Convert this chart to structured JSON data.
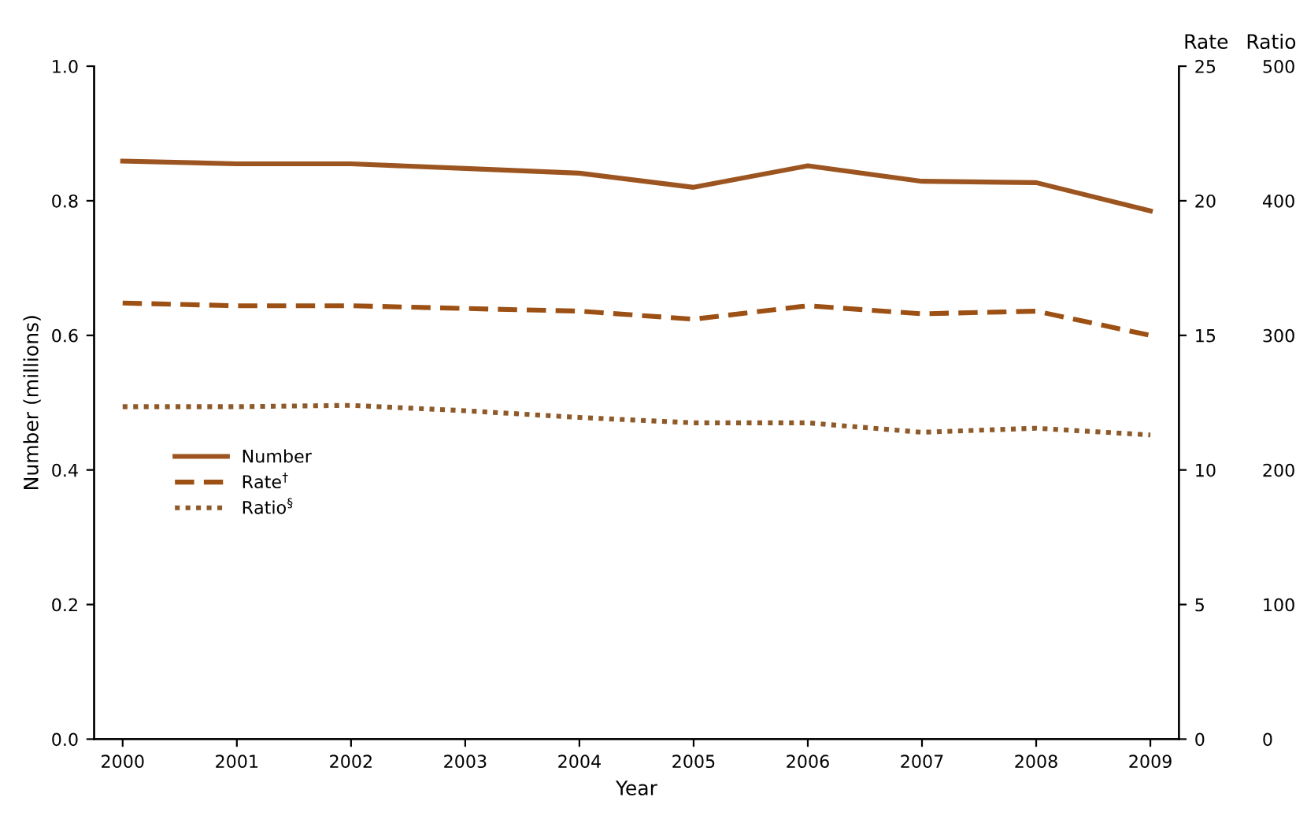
{
  "chart_data": {
    "type": "line",
    "xlabel": "Year",
    "ylabel": "Number (millions)",
    "y2label": "Rate",
    "y3label": "Ratio",
    "categories": [
      "2000",
      "2001",
      "2002",
      "2003",
      "2004",
      "2005",
      "2006",
      "2007",
      "2008",
      "2009"
    ],
    "series": [
      {
        "name": "Number",
        "color": "#9c5520",
        "line_style": "solid",
        "values": [
          0.859,
          0.855,
          0.855,
          0.848,
          0.841,
          0.82,
          0.852,
          0.829,
          0.827,
          0.785
        ]
      },
      {
        "name": "Rate$^{†}$",
        "color": "#9c5014",
        "line_style": "dashed",
        "axis": "y2",
        "values": [
          16.2,
          16.1,
          16.1,
          16.0,
          15.9,
          15.6,
          16.1,
          15.8,
          15.9,
          15.0
        ]
      },
      {
        "name": "Ratio$^{§}$",
        "color": "#8e5a2a",
        "line_style": "dotted",
        "axis": "y3",
        "values": [
          247,
          247,
          248,
          244,
          239,
          235,
          235,
          228,
          231,
          226
        ]
      }
    ],
    "ylim": [
      0,
      1.0
    ],
    "yticks": [
      {
        "value": 0,
        "label": "0.0"
      },
      0.2,
      0.4,
      0.6,
      0.8,
      {
        "value": 1.0,
        "label": "1.0"
      }
    ],
    "y2lim": [
      0,
      25
    ],
    "y2ticks": [
      0,
      5,
      10,
      15,
      20,
      25
    ],
    "y3lim": [
      0,
      500
    ],
    "y3ticks": [
      0,
      100,
      200,
      300,
      400,
      500
    ],
    "legend": "left",
    "grid": false,
    "marker": "none"
  }
}
